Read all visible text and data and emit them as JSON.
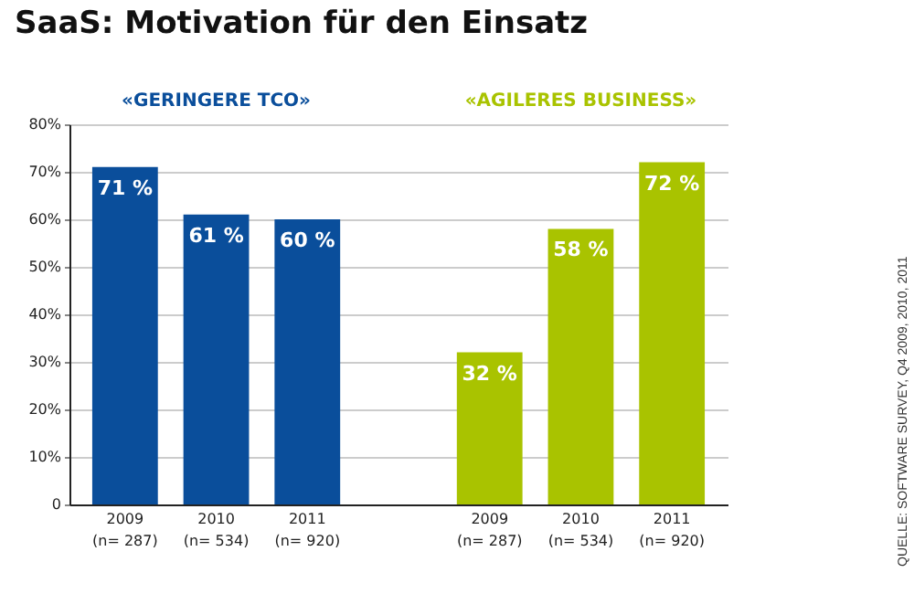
{
  "chart_data": {
    "type": "bar",
    "title": "SaaS: Motivation für den Einsatz",
    "categories": [
      "2009\n(n= 287)",
      "2010\n(n= 534)",
      "2011\n(n= 920)",
      null,
      "2009\n(n= 287)",
      "2010\n(n= 534)",
      "2011\n(n= 920)"
    ],
    "series": [
      {
        "name": "«GERINGERE TCO»",
        "color": "#0a4e9b",
        "values": [
          71,
          61,
          60,
          null,
          null,
          null,
          null
        ],
        "value_labels": [
          "71 %",
          "61 %",
          "60 %",
          null,
          null,
          null,
          null
        ]
      },
      {
        "name": "«AGILERES BUSINESS»",
        "color": "#a9c300",
        "values": [
          null,
          null,
          null,
          null,
          32,
          58,
          72
        ],
        "value_labels": [
          null,
          null,
          null,
          null,
          "32 %",
          "58 %",
          "72 %"
        ]
      }
    ],
    "ylim": [
      0,
      80
    ],
    "yticks": [
      {
        "value": 0,
        "label": "0"
      },
      {
        "value": 10,
        "label": "10%"
      },
      {
        "value": 20,
        "label": "20%"
      },
      {
        "value": 30,
        "label": "30%"
      },
      {
        "value": 40,
        "label": "40%"
      },
      {
        "value": 50,
        "label": "50%"
      },
      {
        "value": 60,
        "label": "60%"
      },
      {
        "value": 70,
        "label": "70%"
      },
      {
        "value": 80,
        "label": "80%"
      }
    ],
    "grid": "y",
    "annotations": [
      "QUELLE: SOFTWARE SURVEY, Q4 2009, 2010, 2011"
    ]
  }
}
